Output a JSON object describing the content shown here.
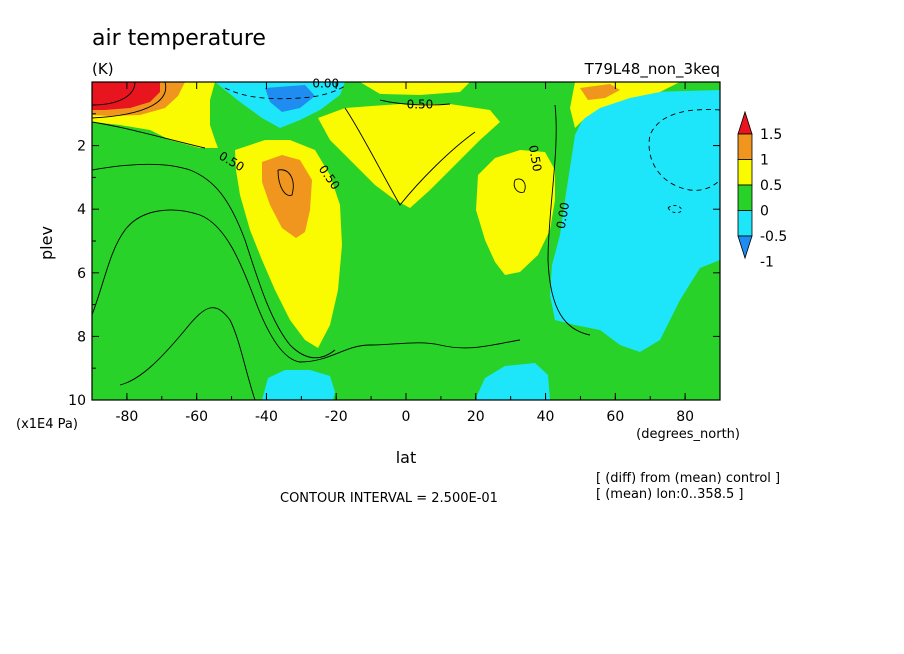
{
  "chart_data": {
    "type": "contour",
    "title": "air temperature",
    "units": "(K)",
    "experiment": "T79L48_non_3keq",
    "xlabel": "lat",
    "xunits": "(degrees_north)",
    "ylabel": "plev",
    "yunits": "(x1E4 Pa)",
    "xlim": [
      -90,
      90
    ],
    "ylim": [
      10,
      0
    ],
    "x_ticks": [
      -80,
      -60,
      -40,
      -20,
      0,
      20,
      40,
      60,
      80
    ],
    "x_tick_labels": [
      "-80",
      "-60",
      "-40",
      "-20",
      "0",
      "20",
      "40",
      "60",
      "80"
    ],
    "y_ticks": [
      2,
      4,
      6,
      8,
      10
    ],
    "y_tick_labels": [
      "2",
      "4",
      "6",
      "8",
      "10"
    ],
    "contour_interval_text": "CONTOUR INTERVAL = 2.500E-01",
    "notes": [
      "[ (diff) from (mean) control ]",
      "[ (mean) lon:0..358.5 ]"
    ],
    "contour_labels": [
      {
        "text": "0.00",
        "lat": -23,
        "plev": 0.05
      },
      {
        "text": "0.50",
        "lat": 4,
        "plev": 0.7
      },
      {
        "text": "0.50",
        "lat": -50,
        "plev": 2.5
      },
      {
        "text": "0.50",
        "lat": -22,
        "plev": 3.0
      },
      {
        "text": "0.50",
        "lat": 37,
        "plev": 2.4
      },
      {
        "text": "0.00",
        "lat": 45,
        "plev": 4.2
      }
    ],
    "colorbar": {
      "labels": [
        "1.5",
        "1",
        "0.5",
        "0",
        "-0.5",
        "-1"
      ],
      "colors": [
        "#e8141e",
        "#f0961e",
        "#fafa00",
        "#28d228",
        "#1ee6fa",
        "#1e8cf0"
      ]
    },
    "fill_colors": {
      "red": "#e8141e",
      "orange": "#f0961e",
      "yellow": "#fafa00",
      "green": "#28d228",
      "cyan": "#1ee6fa",
      "blue": "#1e8cf0"
    }
  }
}
